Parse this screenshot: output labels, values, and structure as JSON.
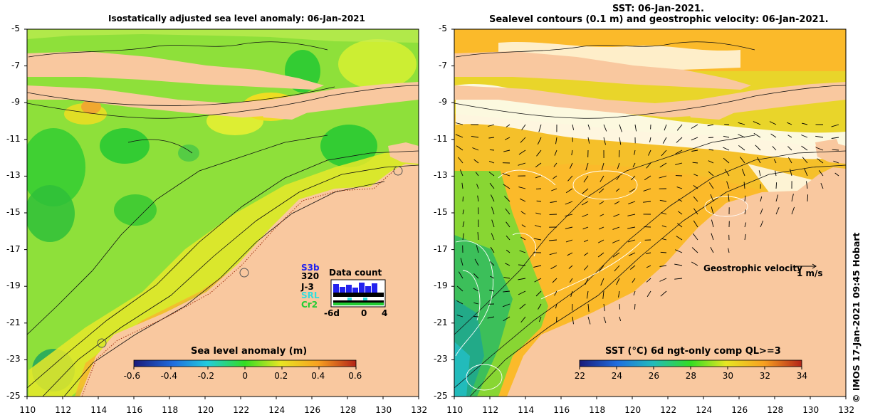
{
  "left_panel": {
    "title": "Isostatically adjusted sea level anomaly: 06-Jan-2021",
    "colorbar": {
      "label": "Sea level anomaly (m)",
      "ticks": [
        "-0.6",
        "-0.4",
        "-0.2",
        "0",
        "0.2",
        "0.4",
        "0.6"
      ],
      "range": [
        -0.6,
        0.6
      ]
    },
    "data_count": {
      "title": "Data count",
      "satellites": [
        {
          "name": "S3b",
          "color": "#2222ee"
        },
        {
          "name": "320",
          "color": "#000000"
        },
        {
          "name": "J-3",
          "color": "#000000"
        },
        {
          "name": "SRL",
          "color": "#33dddd"
        },
        {
          "name": "Cr2",
          "color": "#22cc33"
        }
      ],
      "axis_labels": [
        "-6d",
        "0",
        "4"
      ]
    }
  },
  "right_panel": {
    "title_line1": "SST: 06-Jan-2021.",
    "title_line2": "Sealevel contours (0.1 m) and geostrophic velocity: 06-Jan-2021.",
    "colorbar": {
      "label": "SST (°C) 6d ngt-only comp QL>=3",
      "ticks": [
        "22",
        "24",
        "26",
        "28",
        "30",
        "32",
        "34"
      ],
      "range": [
        22,
        34
      ]
    },
    "velocity_legend": {
      "label": "Geostrophic velocity",
      "scale": "1 m/s"
    }
  },
  "axes": {
    "x_ticks": [
      "110",
      "112",
      "114",
      "116",
      "118",
      "120",
      "122",
      "124",
      "126",
      "128",
      "130",
      "132"
    ],
    "y_ticks": [
      "-5",
      "-7",
      "-9",
      "-11",
      "-13",
      "-15",
      "-17",
      "-19",
      "-21",
      "-23",
      "-25"
    ],
    "lon_range": [
      110,
      132
    ],
    "lat_range": [
      -25,
      -5
    ]
  },
  "credit": "© IMOS 17-Jan-2021 09:45 Hobart",
  "colors": {
    "land": "#f9c89f",
    "ocean_green": "#66dd33",
    "sst_orange": "#fbb92a",
    "sst_yellow": "#eee222"
  }
}
